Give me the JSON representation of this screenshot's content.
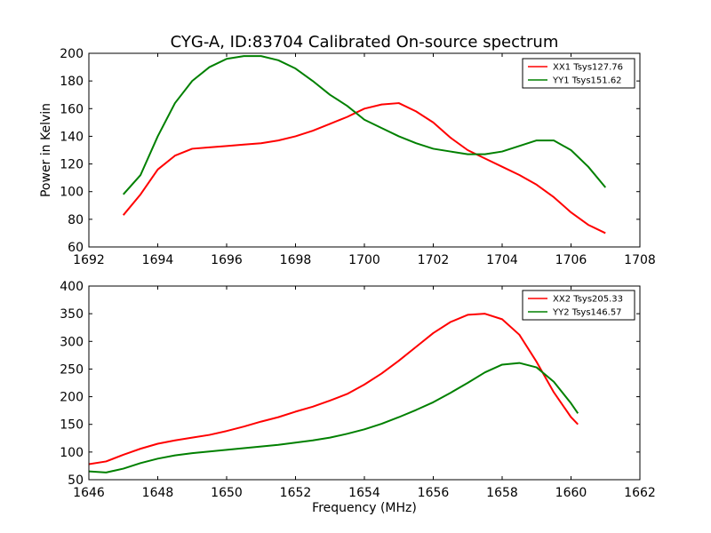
{
  "figure": {
    "title": "CYG-A, ID:83704 Calibrated On-source spectrum",
    "xlabel": "Frequency (MHz)",
    "ylabel": "Power in Kelvin"
  },
  "colors": {
    "red": "#ff0000",
    "green": "#008000"
  },
  "chart_data": [
    {
      "type": "line",
      "title": "CYG-A, ID:83704 Calibrated On-source spectrum",
      "xlabel": "",
      "ylabel": "Power in Kelvin",
      "xlim": [
        1692,
        1708
      ],
      "ylim": [
        60,
        200
      ],
      "xticks": [
        1692,
        1694,
        1696,
        1698,
        1700,
        1702,
        1704,
        1706,
        1708
      ],
      "yticks": [
        60,
        80,
        100,
        120,
        140,
        160,
        180,
        200
      ],
      "grid": false,
      "legend_position": "top-right",
      "series": [
        {
          "name": "XX1 Tsys127.76",
          "color": "#ff0000",
          "x": [
            1693.0,
            1693.5,
            1694.0,
            1694.5,
            1695.0,
            1695.5,
            1696.0,
            1696.5,
            1697.0,
            1697.5,
            1698.0,
            1698.5,
            1699.0,
            1699.5,
            1700.0,
            1700.5,
            1701.0,
            1701.5,
            1702.0,
            1702.5,
            1703.0,
            1703.5,
            1704.0,
            1704.5,
            1705.0,
            1705.5,
            1706.0,
            1706.5,
            1707.0
          ],
          "y": [
            83,
            98,
            116,
            126,
            131,
            132,
            133,
            134,
            135,
            137,
            140,
            144,
            149,
            154,
            160,
            163,
            164,
            158,
            150,
            139,
            130,
            124,
            118,
            112,
            105,
            96,
            85,
            76,
            70
          ]
        },
        {
          "name": "YY1 Tsys151.62",
          "color": "#008000",
          "x": [
            1693.0,
            1693.5,
            1694.0,
            1694.5,
            1695.0,
            1695.5,
            1696.0,
            1696.5,
            1697.0,
            1697.5,
            1698.0,
            1698.5,
            1699.0,
            1699.5,
            1700.0,
            1700.5,
            1701.0,
            1701.5,
            1702.0,
            1702.5,
            1703.0,
            1703.5,
            1704.0,
            1704.5,
            1705.0,
            1705.5,
            1706.0,
            1706.5,
            1707.0
          ],
          "y": [
            98,
            112,
            140,
            164,
            180,
            190,
            196,
            198,
            198,
            195,
            189,
            180,
            170,
            162,
            152,
            146,
            140,
            135,
            131,
            129,
            127,
            127,
            129,
            133,
            137,
            137,
            130,
            118,
            103
          ]
        }
      ]
    },
    {
      "type": "line",
      "title": "",
      "xlabel": "Frequency (MHz)",
      "ylabel": "",
      "xlim": [
        1646,
        1662
      ],
      "ylim": [
        50,
        400
      ],
      "xticks": [
        1646,
        1648,
        1650,
        1652,
        1654,
        1656,
        1658,
        1660,
        1662
      ],
      "yticks": [
        50,
        100,
        150,
        200,
        250,
        300,
        350,
        400
      ],
      "grid": false,
      "legend_position": "top-right",
      "series": [
        {
          "name": "XX2 Tsys205.33",
          "color": "#ff0000",
          "x": [
            1646.0,
            1646.5,
            1647.0,
            1647.5,
            1648.0,
            1648.5,
            1649.0,
            1649.5,
            1650.0,
            1650.5,
            1651.0,
            1651.5,
            1652.0,
            1652.5,
            1653.0,
            1653.5,
            1654.0,
            1654.5,
            1655.0,
            1655.5,
            1656.0,
            1656.5,
            1657.0,
            1657.5,
            1658.0,
            1658.5,
            1659.0,
            1659.5,
            1660.0,
            1660.2
          ],
          "y": [
            78,
            83,
            95,
            106,
            115,
            121,
            126,
            131,
            138,
            146,
            155,
            163,
            173,
            182,
            193,
            205,
            222,
            242,
            265,
            290,
            315,
            335,
            348,
            350,
            340,
            312,
            263,
            208,
            163,
            150
          ]
        },
        {
          "name": "YY2 Tsys146.57",
          "color": "#008000",
          "x": [
            1646.0,
            1646.5,
            1647.0,
            1647.5,
            1648.0,
            1648.5,
            1649.0,
            1649.5,
            1650.0,
            1650.5,
            1651.0,
            1651.5,
            1652.0,
            1652.5,
            1653.0,
            1653.5,
            1654.0,
            1654.5,
            1655.0,
            1655.5,
            1656.0,
            1656.5,
            1657.0,
            1657.5,
            1658.0,
            1658.5,
            1659.0,
            1659.5,
            1660.0,
            1660.2
          ],
          "y": [
            65,
            63,
            70,
            80,
            88,
            94,
            98,
            101,
            104,
            107,
            110,
            113,
            117,
            121,
            126,
            133,
            141,
            151,
            163,
            176,
            190,
            207,
            225,
            244,
            258,
            261,
            253,
            227,
            188,
            170
          ]
        }
      ]
    }
  ]
}
